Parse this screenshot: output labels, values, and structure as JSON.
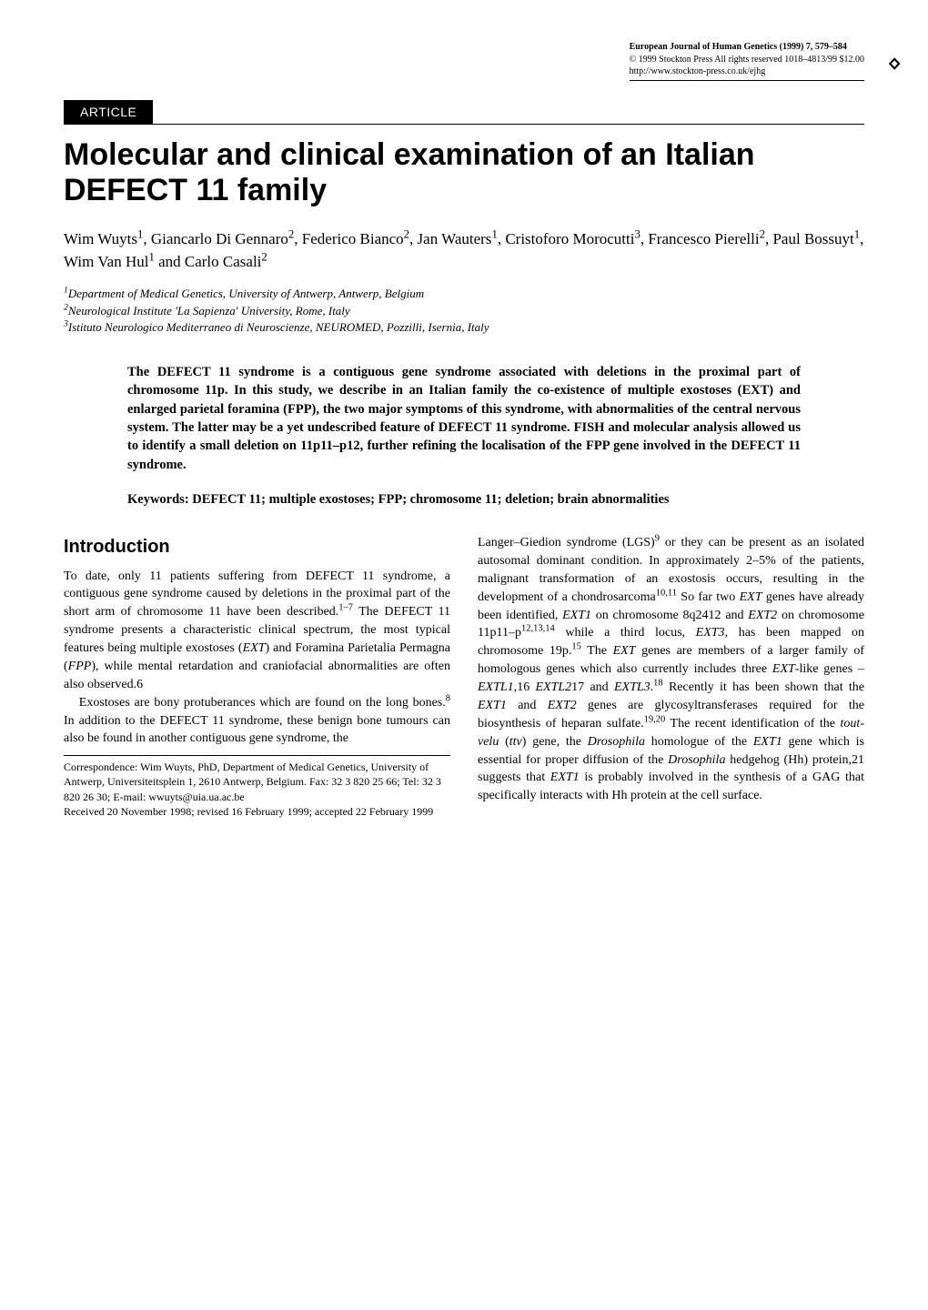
{
  "header": {
    "journal": "European Journal of Human Genetics (1999) 7, 579–584",
    "copyright": "© 1999 Stockton Press All rights reserved 1018–4813/99 $12.00",
    "url": "http://www.stockton-press.co.uk/ejhg",
    "logo_glyph": "🝔"
  },
  "badge": "ARTICLE",
  "title": "Molecular and clinical examination of an Italian DEFECT 11 family",
  "authors_html": "Wim Wuyts<sup>1</sup>, Giancarlo Di Gennaro<sup>2</sup>, Federico Bianco<sup>2</sup>, Jan Wauters<sup>1</sup>, Cristoforo Morocutti<sup>3</sup>, Francesco Pierelli<sup>2</sup>, Paul Bossuyt<sup>1</sup>, Wim Van Hul<sup>1</sup> and Carlo Casali<sup>2</sup>",
  "affiliations": [
    {
      "num": "1",
      "text": "Department of Medical Genetics, University of Antwerp, Antwerp, Belgium"
    },
    {
      "num": "2",
      "text": "Neurological Institute 'La Sapienza' University, Rome, Italy"
    },
    {
      "num": "3",
      "text": "Istituto Neurologico Mediterraneo di Neuroscienze, NEUROMED, Pozzilli, Isernia, Italy"
    }
  ],
  "abstract": "The DEFECT 11 syndrome is a contiguous gene syndrome associated with deletions in the proximal part of chromosome 11p. In this study, we describe in an Italian family the co-existence of multiple exostoses (EXT) and enlarged parietal foramina (FPP), the two major symptoms of this syndrome, with abnormalities of the central nervous system. The latter may be a yet undescribed feature of DEFECT 11 syndrome. FISH and molecular analysis allowed us to identify a small deletion on 11p11–p12, further refining the localisation of the FPP gene involved in the DEFECT 11 syndrome.",
  "keywords": "Keywords: DEFECT 11; multiple exostoses; FPP; chromosome 11; deletion; brain abnormalities",
  "section_heading": "Introduction",
  "col1": {
    "p1": "To date, only 11 patients suffering from DEFECT 11 syndrome, a contiguous gene syndrome caused by deletions in the proximal part of the short arm of chromosome 11 have been described.1–7 The DEFECT 11 syndrome presents a characteristic clinical spectrum, the most typical features being multiple exostoses (EXT) and Foramina Parietalia Permagna (FPP), while mental retardation and craniofacial abnormalities are often also observed.6",
    "p2": "Exostoses are bony protuberances which are found on the long bones.8 In addition to the DEFECT 11 syndrome, these benign bone tumours can also be found in another contiguous gene syndrome, the"
  },
  "footnote": {
    "correspondence": "Correspondence: Wim Wuyts, PhD, Department of Medical Genetics, University of Antwerp, Universiteitsplein 1, 2610 Antwerp, Belgium. Fax: 32 3 820 25 66; Tel: 32 3 820 26 30; E-mail: wwuyts@uia.ua.ac.be",
    "received": "Received 20 November 1998; revised 16 February 1999; accepted 22 February 1999"
  },
  "col2": {
    "p1": "Langer–Giedion syndrome (LGS)9 or they can be present as an isolated autosomal dominant condition. In approximately 2–5% of the patients, malignant transformation of an exostosis occurs, resulting in the development of a chondrosarcoma10,11 So far two EXT genes have already been identified, EXT1 on chromosome 8q2412 and EXT2 on chromosome 11p11–p12,13,14 while a third locus, EXT3, has been mapped on chromosome 19p.15 The EXT genes are members of a larger family of homologous genes which also currently includes three EXT-like genes – EXTL1,16 EXTL217 and EXTL3.18 Recently it has been shown that the EXT1 and EXT2 genes are glycosyltransferases required for the biosynthesis of heparan sulfate.19,20 The recent identification of the tout-velu (ttv) gene, the Drosophila homologue of the EXT1 gene which is essential for proper diffusion of the Drosophila hedgehog (Hh) protein,21 suggests that EXT1 is probably involved in the synthesis of a GAG that specifically interacts with Hh protein at the cell surface."
  },
  "colors": {
    "background": "#ffffff",
    "text": "#000000",
    "badge_bg": "#000000",
    "badge_fg": "#ffffff"
  },
  "typography": {
    "title_font": "Arial",
    "title_size_pt": 26,
    "body_font": "Times",
    "body_size_pt": 11,
    "heading_size_pt": 15,
    "abstract_weight": "bold"
  }
}
